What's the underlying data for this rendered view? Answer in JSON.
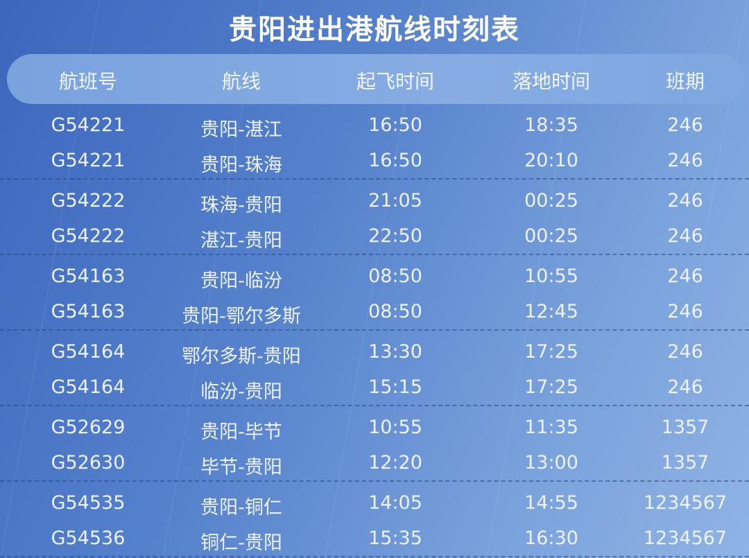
{
  "title": "贵阳进出港航线时刻表",
  "columns": [
    "航班号",
    "航线",
    "起飞时间",
    "落地时间",
    "班期"
  ],
  "groups": [
    [
      [
        "G54221",
        "贵阳-湛江",
        "16:50",
        "18:35",
        "246"
      ],
      [
        "G54221",
        "贵阳-珠海",
        "16:50",
        "20:10",
        "246"
      ]
    ],
    [
      [
        "G54222",
        "珠海-贵阳",
        "21:05",
        "00:25",
        "246"
      ],
      [
        "G54222",
        "湛江-贵阳",
        "22:50",
        "00:25",
        "246"
      ]
    ],
    [
      [
        "G54163",
        "贵阳-临汾",
        "08:50",
        "10:55",
        "246"
      ],
      [
        "G54163",
        "贵阳-鄂尔多斯",
        "08:50",
        "12:45",
        "246"
      ]
    ],
    [
      [
        "G54164",
        "鄂尔多斯-贵阳",
        "13:30",
        "17:25",
        "246"
      ],
      [
        "G54164",
        "临汾-贵阳",
        "15:15",
        "17:25",
        "246"
      ]
    ],
    [
      [
        "G52629",
        "贵阳-毕节",
        "10:55",
        "11:35",
        "1357"
      ],
      [
        "G52630",
        "毕节-贵阳",
        "12:20",
        "13:00",
        "1357"
      ]
    ],
    [
      [
        "G54535",
        "贵阳-铜仁",
        "14:05",
        "14:55",
        "1234567"
      ],
      [
        "G54536",
        "铜仁-贵阳",
        "15:35",
        "16:30",
        "1234567"
      ]
    ]
  ]
}
